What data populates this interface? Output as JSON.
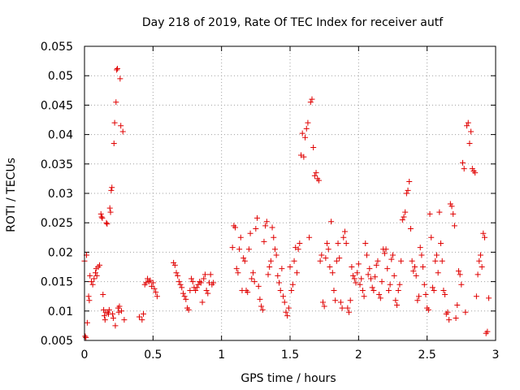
{
  "chart_data": {
    "type": "scatter",
    "title": "Day 218 of 2019, Rate Of TEC Index for receiver autf",
    "xlabel": "GPS time / hours",
    "ylabel": "ROTI / TECUs",
    "xlim": [
      0,
      3
    ],
    "ylim": [
      0.005,
      0.055
    ],
    "grid": true,
    "marker": "+",
    "color": "#e00000",
    "xticks": [
      {
        "v": 0,
        "label": "0"
      },
      {
        "v": 0.5,
        "label": "0.5"
      },
      {
        "v": 1,
        "label": "1"
      },
      {
        "v": 1.5,
        "label": "1.5"
      },
      {
        "v": 2,
        "label": "2"
      },
      {
        "v": 2.5,
        "label": "2.5"
      },
      {
        "v": 3,
        "label": "3"
      }
    ],
    "yticks": [
      {
        "v": 0.005,
        "label": "0.005"
      },
      {
        "v": 0.01,
        "label": "0.01"
      },
      {
        "v": 0.015,
        "label": "0.015"
      },
      {
        "v": 0.02,
        "label": "0.02"
      },
      {
        "v": 0.025,
        "label": "0.025"
      },
      {
        "v": 0.03,
        "label": "0.03"
      },
      {
        "v": 0.035,
        "label": "0.035"
      },
      {
        "v": 0.04,
        "label": "0.04"
      },
      {
        "v": 0.045,
        "label": "0.045"
      },
      {
        "v": 0.05,
        "label": "0.05"
      },
      {
        "v": 0.055,
        "label": "0.055"
      }
    ],
    "series": [
      {
        "name": "ROTI",
        "points": [
          [
            0.0,
            0.0185
          ],
          [
            0.005,
            0.0057
          ],
          [
            0.01,
            0.0055
          ],
          [
            0.015,
            0.0195
          ],
          [
            0.02,
            0.008
          ],
          [
            0.03,
            0.0125
          ],
          [
            0.035,
            0.0118
          ],
          [
            0.04,
            0.016
          ],
          [
            0.05,
            0.015
          ],
          [
            0.06,
            0.0145
          ],
          [
            0.07,
            0.0155
          ],
          [
            0.08,
            0.0165
          ],
          [
            0.085,
            0.0172
          ],
          [
            0.09,
            0.016
          ],
          [
            0.1,
            0.0175
          ],
          [
            0.11,
            0.0178
          ],
          [
            0.12,
            0.0265
          ],
          [
            0.125,
            0.026
          ],
          [
            0.13,
            0.0258
          ],
          [
            0.135,
            0.0128
          ],
          [
            0.14,
            0.0102
          ],
          [
            0.145,
            0.0092
          ],
          [
            0.15,
            0.0085
          ],
          [
            0.155,
            0.0098
          ],
          [
            0.16,
            0.025
          ],
          [
            0.165,
            0.0248
          ],
          [
            0.17,
            0.0098
          ],
          [
            0.175,
            0.0095
          ],
          [
            0.18,
            0.0102
          ],
          [
            0.185,
            0.0275
          ],
          [
            0.19,
            0.0268
          ],
          [
            0.195,
            0.0305
          ],
          [
            0.2,
            0.031
          ],
          [
            0.205,
            0.0095
          ],
          [
            0.21,
            0.0088
          ],
          [
            0.215,
            0.0385
          ],
          [
            0.22,
            0.042
          ],
          [
            0.225,
            0.0075
          ],
          [
            0.23,
            0.0455
          ],
          [
            0.235,
            0.051
          ],
          [
            0.24,
            0.0512
          ],
          [
            0.245,
            0.0105
          ],
          [
            0.25,
            0.0098
          ],
          [
            0.255,
            0.0108
          ],
          [
            0.26,
            0.0495
          ],
          [
            0.265,
            0.0415
          ],
          [
            0.27,
            0.01
          ],
          [
            0.28,
            0.0405
          ],
          [
            0.29,
            0.0085
          ],
          [
            0.4,
            0.009
          ],
          [
            0.42,
            0.0085
          ],
          [
            0.43,
            0.0095
          ],
          [
            0.44,
            0.0145
          ],
          [
            0.45,
            0.0148
          ],
          [
            0.46,
            0.0155
          ],
          [
            0.47,
            0.015
          ],
          [
            0.48,
            0.0152
          ],
          [
            0.49,
            0.0142
          ],
          [
            0.5,
            0.0148
          ],
          [
            0.51,
            0.0138
          ],
          [
            0.52,
            0.0132
          ],
          [
            0.53,
            0.0125
          ],
          [
            0.65,
            0.0182
          ],
          [
            0.66,
            0.0178
          ],
          [
            0.67,
            0.0165
          ],
          [
            0.68,
            0.016
          ],
          [
            0.69,
            0.015
          ],
          [
            0.7,
            0.0145
          ],
          [
            0.71,
            0.014
          ],
          [
            0.72,
            0.013
          ],
          [
            0.73,
            0.0125
          ],
          [
            0.74,
            0.012
          ],
          [
            0.75,
            0.0105
          ],
          [
            0.76,
            0.0102
          ],
          [
            0.77,
            0.0135
          ],
          [
            0.78,
            0.0155
          ],
          [
            0.79,
            0.015
          ],
          [
            0.8,
            0.014
          ],
          [
            0.81,
            0.0135
          ],
          [
            0.82,
            0.014
          ],
          [
            0.83,
            0.0145
          ],
          [
            0.84,
            0.015
          ],
          [
            0.85,
            0.0148
          ],
          [
            0.86,
            0.0115
          ],
          [
            0.87,
            0.0155
          ],
          [
            0.88,
            0.0162
          ],
          [
            0.89,
            0.0135
          ],
          [
            0.9,
            0.013
          ],
          [
            0.91,
            0.0148
          ],
          [
            0.92,
            0.0162
          ],
          [
            0.93,
            0.0145
          ],
          [
            0.94,
            0.0148
          ],
          [
            1.08,
            0.0208
          ],
          [
            1.09,
            0.0245
          ],
          [
            1.1,
            0.0242
          ],
          [
            1.11,
            0.0172
          ],
          [
            1.12,
            0.0165
          ],
          [
            1.13,
            0.0205
          ],
          [
            1.14,
            0.0225
          ],
          [
            1.15,
            0.0135
          ],
          [
            1.16,
            0.019
          ],
          [
            1.17,
            0.0185
          ],
          [
            1.18,
            0.0135
          ],
          [
            1.19,
            0.0132
          ],
          [
            1.2,
            0.0205
          ],
          [
            1.21,
            0.0232
          ],
          [
            1.22,
            0.0155
          ],
          [
            1.23,
            0.0165
          ],
          [
            1.24,
            0.015
          ],
          [
            1.25,
            0.024
          ],
          [
            1.26,
            0.0258
          ],
          [
            1.27,
            0.0142
          ],
          [
            1.28,
            0.012
          ],
          [
            1.29,
            0.0108
          ],
          [
            1.3,
            0.0102
          ],
          [
            1.31,
            0.0218
          ],
          [
            1.32,
            0.0245
          ],
          [
            1.33,
            0.0252
          ],
          [
            1.34,
            0.0162
          ],
          [
            1.35,
            0.0175
          ],
          [
            1.36,
            0.0185
          ],
          [
            1.37,
            0.0242
          ],
          [
            1.38,
            0.0225
          ],
          [
            1.39,
            0.0205
          ],
          [
            1.4,
            0.0195
          ],
          [
            1.41,
            0.016
          ],
          [
            1.42,
            0.0148
          ],
          [
            1.43,
            0.0135
          ],
          [
            1.44,
            0.0172
          ],
          [
            1.45,
            0.0125
          ],
          [
            1.46,
            0.0115
          ],
          [
            1.47,
            0.0098
          ],
          [
            1.48,
            0.0092
          ],
          [
            1.49,
            0.0105
          ],
          [
            1.5,
            0.0175
          ],
          [
            1.51,
            0.0135
          ],
          [
            1.52,
            0.0145
          ],
          [
            1.53,
            0.0185
          ],
          [
            1.54,
            0.0208
          ],
          [
            1.55,
            0.0165
          ],
          [
            1.56,
            0.0205
          ],
          [
            1.57,
            0.0215
          ],
          [
            1.58,
            0.0365
          ],
          [
            1.59,
            0.0402
          ],
          [
            1.6,
            0.0362
          ],
          [
            1.61,
            0.0395
          ],
          [
            1.62,
            0.041
          ],
          [
            1.63,
            0.042
          ],
          [
            1.64,
            0.0225
          ],
          [
            1.65,
            0.0455
          ],
          [
            1.66,
            0.046
          ],
          [
            1.67,
            0.0378
          ],
          [
            1.68,
            0.033
          ],
          [
            1.69,
            0.0335
          ],
          [
            1.7,
            0.0325
          ],
          [
            1.71,
            0.0322
          ],
          [
            1.72,
            0.0185
          ],
          [
            1.73,
            0.0195
          ],
          [
            1.74,
            0.0115
          ],
          [
            1.75,
            0.0108
          ],
          [
            1.76,
            0.019
          ],
          [
            1.77,
            0.0215
          ],
          [
            1.78,
            0.0205
          ],
          [
            1.79,
            0.0175
          ],
          [
            1.8,
            0.0252
          ],
          [
            1.81,
            0.0165
          ],
          [
            1.82,
            0.0135
          ],
          [
            1.83,
            0.0118
          ],
          [
            1.84,
            0.0185
          ],
          [
            1.85,
            0.0215
          ],
          [
            1.86,
            0.019
          ],
          [
            1.87,
            0.0115
          ],
          [
            1.88,
            0.0105
          ],
          [
            1.89,
            0.0225
          ],
          [
            1.9,
            0.0235
          ],
          [
            1.91,
            0.0215
          ],
          [
            1.92,
            0.0105
          ],
          [
            1.93,
            0.0098
          ],
          [
            1.94,
            0.0118
          ],
          [
            1.95,
            0.0175
          ],
          [
            1.96,
            0.016
          ],
          [
            1.97,
            0.0155
          ],
          [
            1.98,
            0.0148
          ],
          [
            1.99,
            0.0165
          ],
          [
            2.0,
            0.018
          ],
          [
            2.01,
            0.0145
          ],
          [
            2.02,
            0.0155
          ],
          [
            2.03,
            0.0135
          ],
          [
            2.04,
            0.0125
          ],
          [
            2.05,
            0.0215
          ],
          [
            2.06,
            0.0195
          ],
          [
            2.07,
            0.0162
          ],
          [
            2.08,
            0.0172
          ],
          [
            2.09,
            0.0155
          ],
          [
            2.1,
            0.014
          ],
          [
            2.11,
            0.0135
          ],
          [
            2.12,
            0.0158
          ],
          [
            2.13,
            0.0178
          ],
          [
            2.14,
            0.0185
          ],
          [
            2.15,
            0.0128
          ],
          [
            2.16,
            0.0122
          ],
          [
            2.17,
            0.015
          ],
          [
            2.18,
            0.0205
          ],
          [
            2.19,
            0.0198
          ],
          [
            2.2,
            0.0205
          ],
          [
            2.21,
            0.0172
          ],
          [
            2.22,
            0.0135
          ],
          [
            2.23,
            0.0145
          ],
          [
            2.24,
            0.0188
          ],
          [
            2.25,
            0.0195
          ],
          [
            2.26,
            0.016
          ],
          [
            2.27,
            0.0118
          ],
          [
            2.28,
            0.011
          ],
          [
            2.29,
            0.0135
          ],
          [
            2.3,
            0.0145
          ],
          [
            2.31,
            0.0185
          ],
          [
            2.32,
            0.0255
          ],
          [
            2.33,
            0.026
          ],
          [
            2.34,
            0.0268
          ],
          [
            2.35,
            0.03
          ],
          [
            2.36,
            0.0305
          ],
          [
            2.37,
            0.032
          ],
          [
            2.38,
            0.024
          ],
          [
            2.39,
            0.0185
          ],
          [
            2.4,
            0.0168
          ],
          [
            2.41,
            0.0175
          ],
          [
            2.42,
            0.016
          ],
          [
            2.43,
            0.0118
          ],
          [
            2.44,
            0.0125
          ],
          [
            2.45,
            0.0208
          ],
          [
            2.46,
            0.0195
          ],
          [
            2.47,
            0.0175
          ],
          [
            2.48,
            0.0145
          ],
          [
            2.49,
            0.0128
          ],
          [
            2.5,
            0.0105
          ],
          [
            2.51,
            0.0102
          ],
          [
            2.52,
            0.0265
          ],
          [
            2.53,
            0.0225
          ],
          [
            2.54,
            0.014
          ],
          [
            2.55,
            0.0135
          ],
          [
            2.56,
            0.0185
          ],
          [
            2.57,
            0.0195
          ],
          [
            2.58,
            0.0165
          ],
          [
            2.59,
            0.0268
          ],
          [
            2.6,
            0.0215
          ],
          [
            2.61,
            0.0185
          ],
          [
            2.62,
            0.0135
          ],
          [
            2.63,
            0.0128
          ],
          [
            2.64,
            0.0095
          ],
          [
            2.65,
            0.0098
          ],
          [
            2.66,
            0.0085
          ],
          [
            2.67,
            0.0282
          ],
          [
            2.68,
            0.0278
          ],
          [
            2.69,
            0.0265
          ],
          [
            2.7,
            0.0245
          ],
          [
            2.71,
            0.0088
          ],
          [
            2.72,
            0.011
          ],
          [
            2.73,
            0.0168
          ],
          [
            2.74,
            0.0162
          ],
          [
            2.75,
            0.0145
          ],
          [
            2.76,
            0.0352
          ],
          [
            2.77,
            0.0342
          ],
          [
            2.78,
            0.0098
          ],
          [
            2.79,
            0.0415
          ],
          [
            2.8,
            0.042
          ],
          [
            2.81,
            0.0385
          ],
          [
            2.82,
            0.0405
          ],
          [
            2.83,
            0.0342
          ],
          [
            2.84,
            0.0338
          ],
          [
            2.85,
            0.0335
          ],
          [
            2.86,
            0.0125
          ],
          [
            2.87,
            0.0162
          ],
          [
            2.88,
            0.0185
          ],
          [
            2.89,
            0.0195
          ],
          [
            2.9,
            0.0175
          ],
          [
            2.91,
            0.0232
          ],
          [
            2.92,
            0.0225
          ],
          [
            2.93,
            0.0062
          ],
          [
            2.94,
            0.0065
          ],
          [
            2.95,
            0.0122
          ]
        ]
      }
    ]
  }
}
